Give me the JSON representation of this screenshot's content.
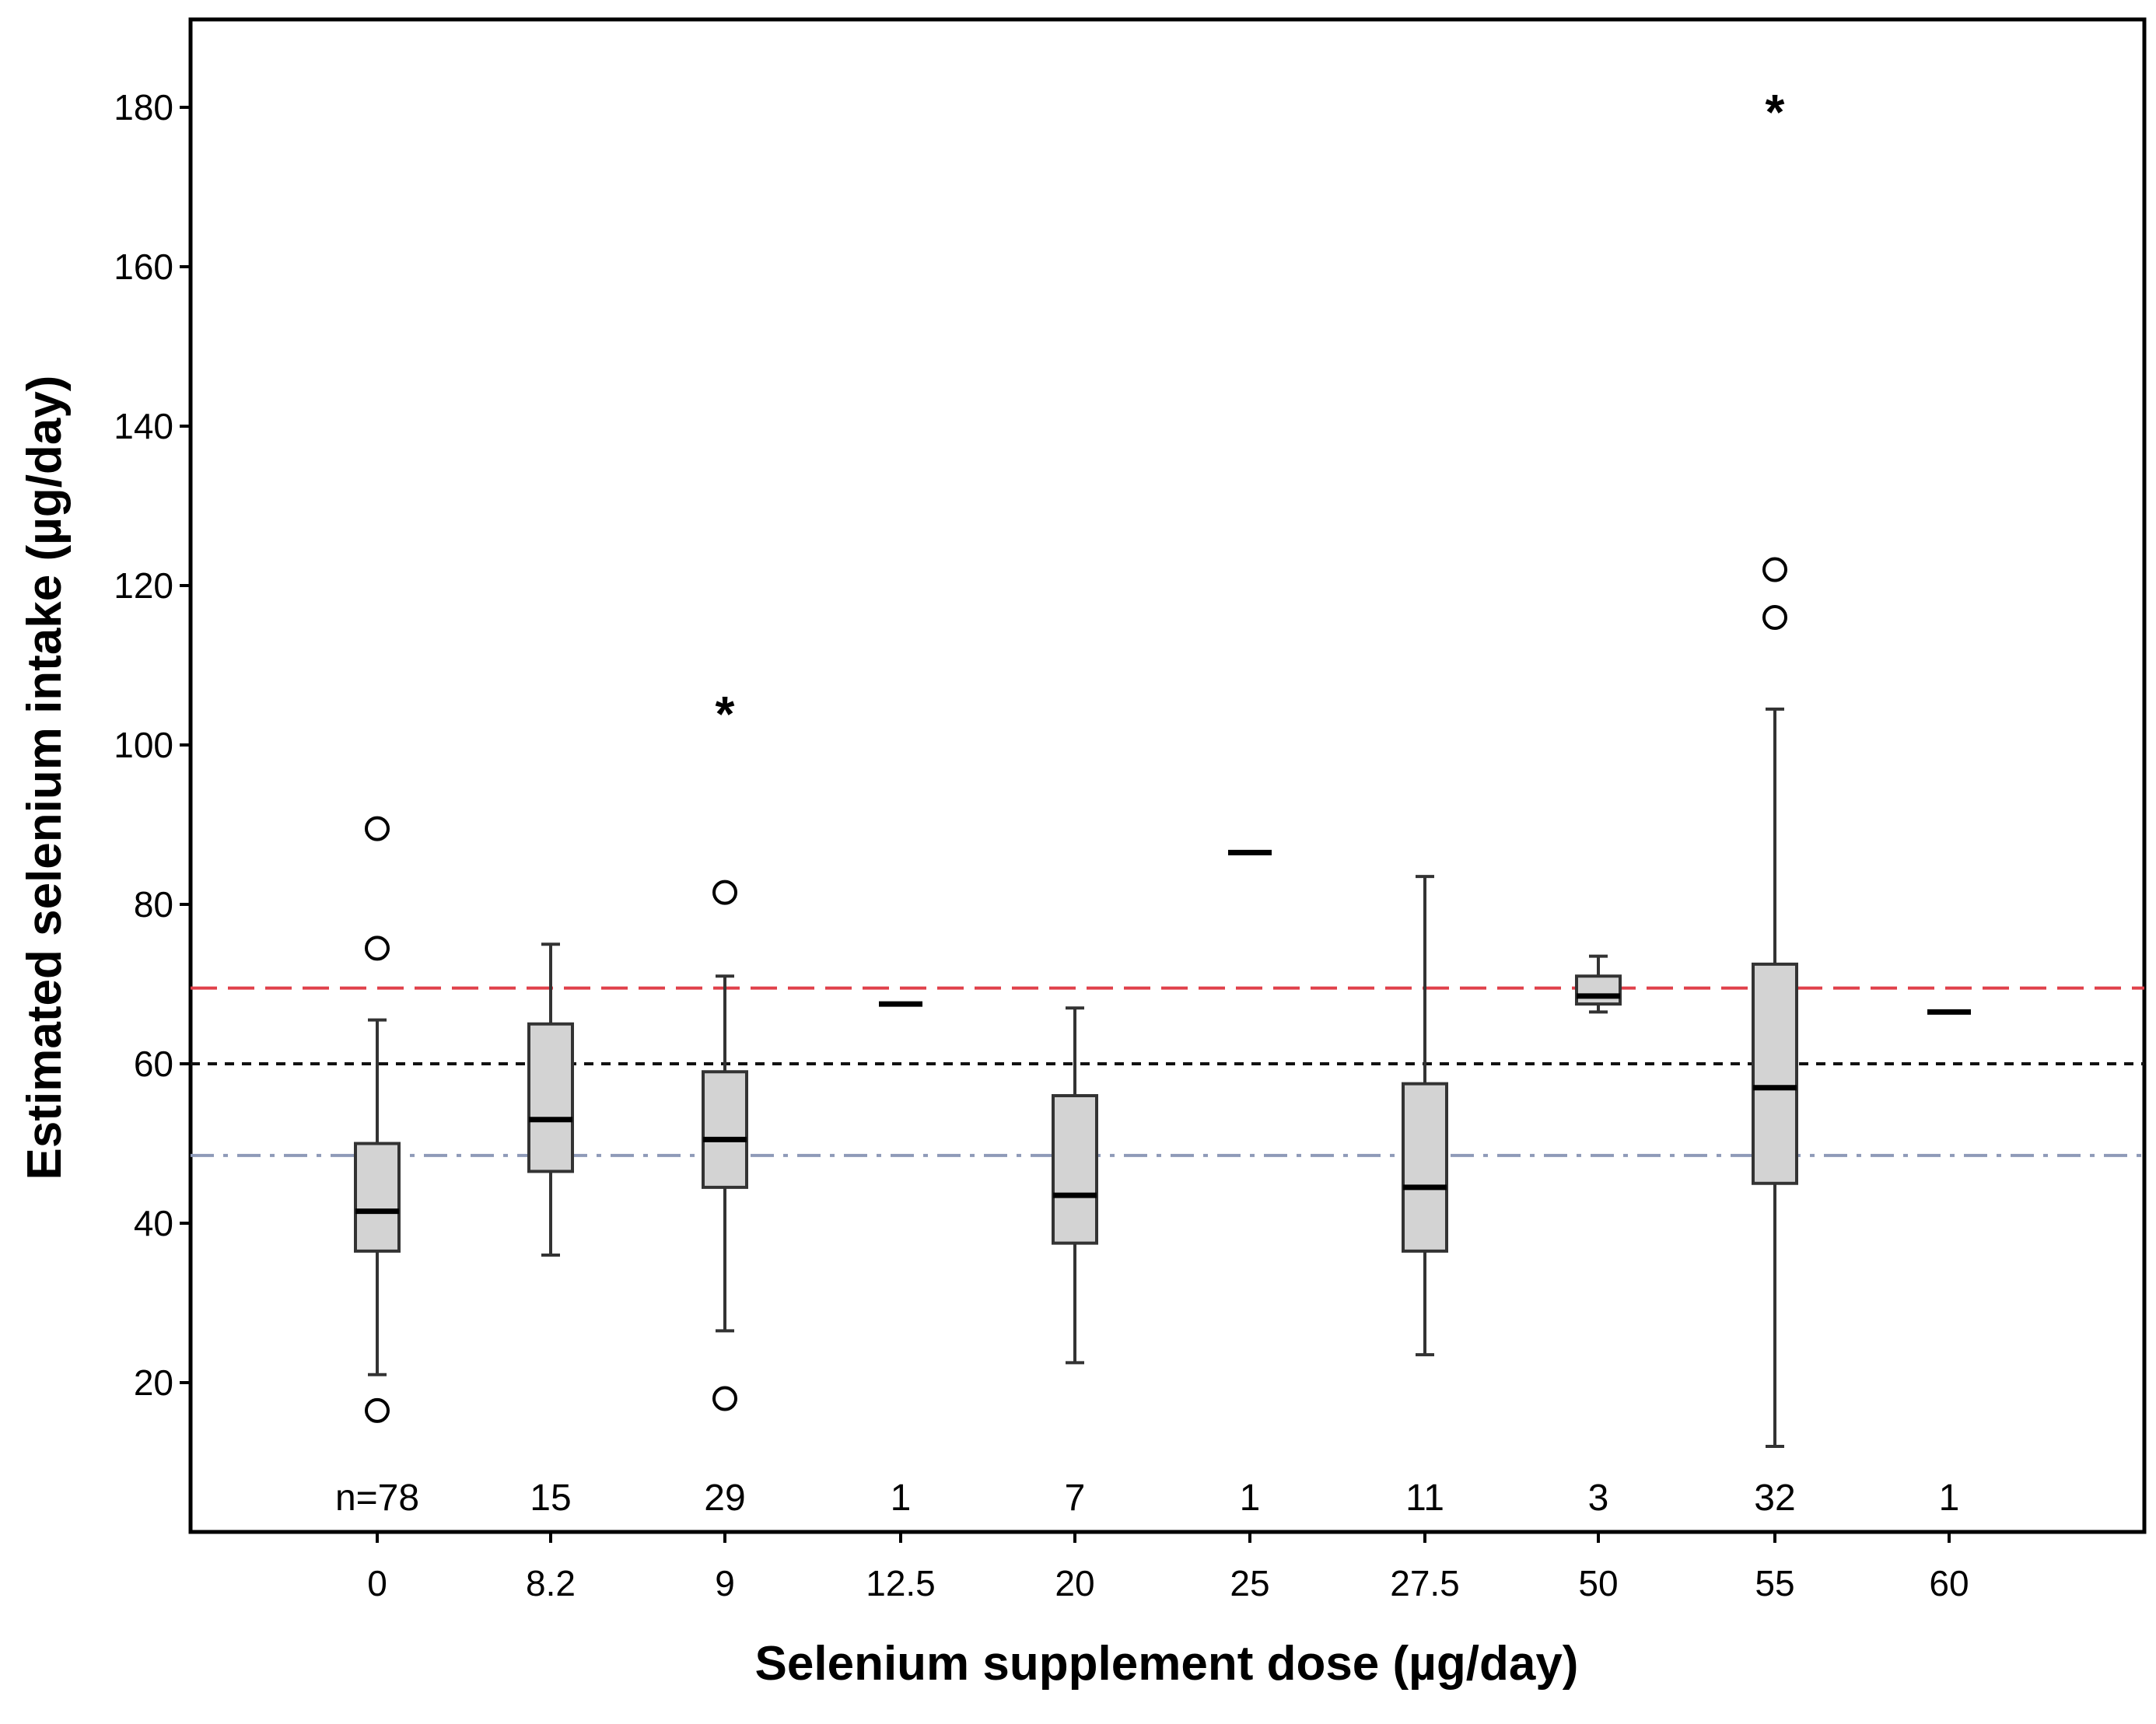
{
  "chart_data": {
    "type": "boxplot",
    "title": "",
    "xlabel": "Selenium supplement dose (µg/day)",
    "ylabel": "Estimated selenium intake (µg/day)",
    "ylim": [
      0,
      188
    ],
    "yticks": [
      20,
      40,
      60,
      80,
      100,
      120,
      140,
      160,
      180
    ],
    "grid": false,
    "categories": [
      "0",
      "8.2",
      "9",
      "12.5",
      "20",
      "25",
      "27.5",
      "50",
      "55",
      "60"
    ],
    "counts": [
      "n=78",
      "15",
      "29",
      "1",
      "7",
      "1",
      "11",
      "3",
      "32",
      "1"
    ],
    "boxes": [
      {
        "category": "0",
        "whisker_low": 21,
        "q1": 36.5,
        "median": 41.5,
        "q3": 50,
        "whisker_high": 65.5,
        "outliers": [
          16.5,
          74.5,
          89.5
        ],
        "extremes": []
      },
      {
        "category": "8.2",
        "whisker_low": 36,
        "q1": 46.5,
        "median": 53,
        "q3": 65,
        "whisker_high": 75,
        "outliers": [],
        "extremes": []
      },
      {
        "category": "9",
        "whisker_low": 26.5,
        "q1": 44.5,
        "median": 50.5,
        "q3": 59,
        "whisker_high": 71,
        "outliers": [
          18,
          81.5
        ],
        "extremes": [
          104.5
        ]
      },
      {
        "category": "12.5",
        "median": 67.5,
        "single": true,
        "outliers": [],
        "extremes": []
      },
      {
        "category": "20",
        "whisker_low": 22.5,
        "q1": 37.5,
        "median": 43.5,
        "q3": 56,
        "whisker_high": 67,
        "outliers": [],
        "extremes": []
      },
      {
        "category": "25",
        "median": 86.5,
        "single": true,
        "outliers": [],
        "extremes": []
      },
      {
        "category": "27.5",
        "whisker_low": 23.5,
        "q1": 36.5,
        "median": 44.5,
        "q3": 57.5,
        "whisker_high": 83.5,
        "outliers": [],
        "extremes": []
      },
      {
        "category": "50",
        "whisker_low": 66.5,
        "q1": 67.5,
        "median": 68.5,
        "q3": 71,
        "whisker_high": 73.5,
        "outliers": [],
        "extremes": []
      },
      {
        "category": "55",
        "whisker_low": 12,
        "q1": 45,
        "median": 57,
        "q3": 72.5,
        "whisker_high": 104.5,
        "outliers": [
          116,
          122
        ],
        "extremes": [
          180
        ]
      },
      {
        "category": "60",
        "median": 66.5,
        "single": true,
        "outliers": [],
        "extremes": []
      }
    ],
    "reference_lines": [
      {
        "value": 69.5,
        "color": "#e0404a",
        "style": "long-dash"
      },
      {
        "value": 60,
        "color": "#111111",
        "style": "short-dash"
      },
      {
        "value": 48.5,
        "color": "#8e9ab8",
        "style": "dash-dot"
      }
    ],
    "colors": {
      "box_fill": "#d3d3d3",
      "box_stroke": "#333333",
      "axis": "#000000"
    },
    "outlier_symbol": "○",
    "extreme_symbol": "*"
  }
}
